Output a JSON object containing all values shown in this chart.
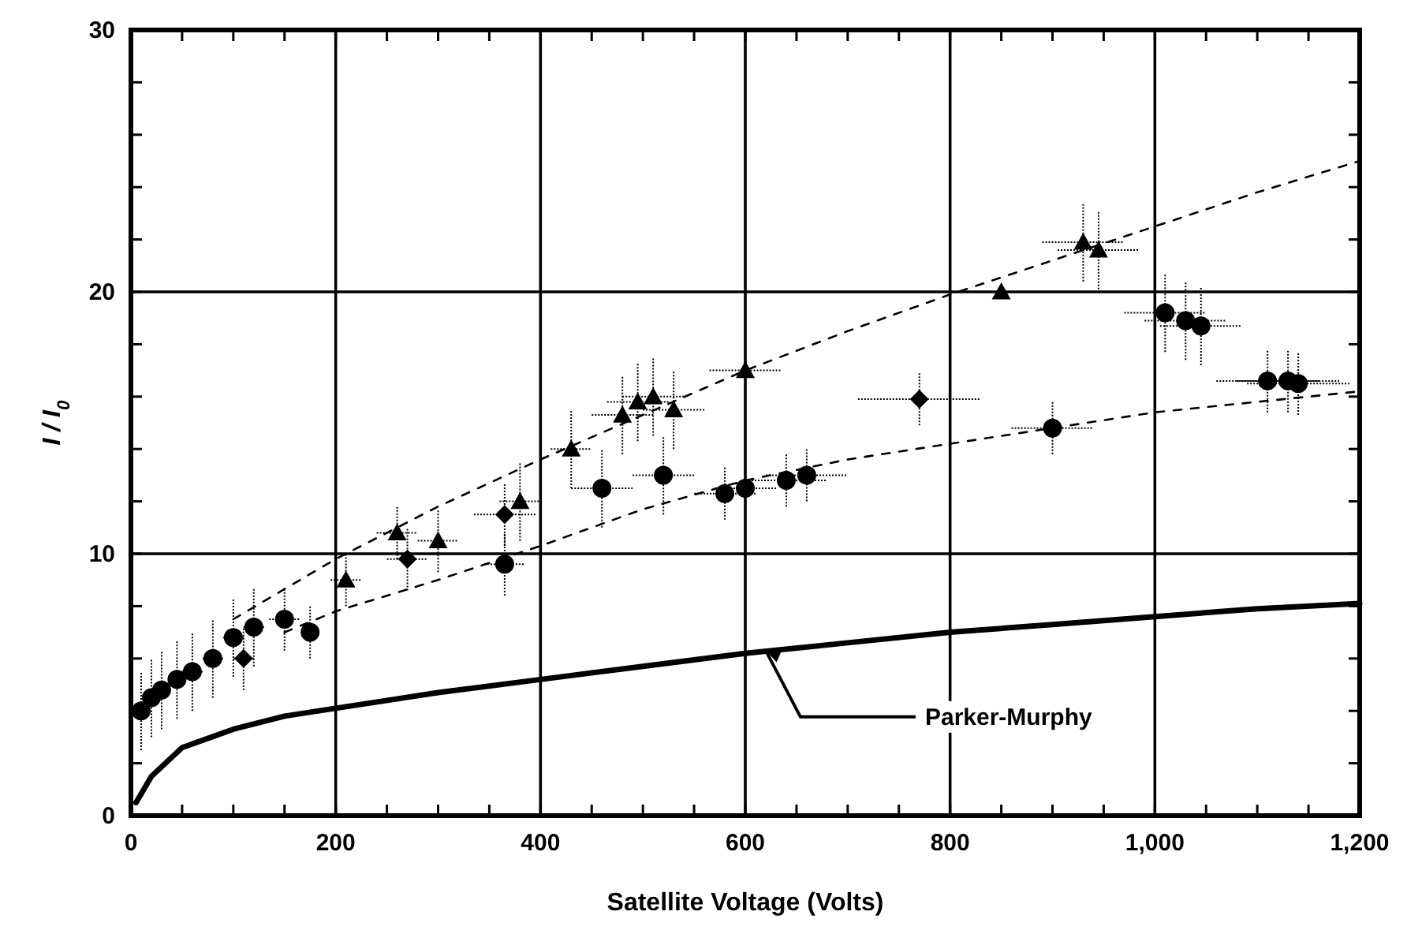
{
  "chart_data": {
    "type": "scatter",
    "xlabel": "Satellite Voltage (Volts)",
    "ylabel": "I / I$_{0}$",
    "xlim": [
      0,
      1200
    ],
    "ylim": [
      0,
      30
    ],
    "xticks": [
      0,
      {
        "value": 50,
        "label": null
      },
      {
        "value": 100,
        "label": null
      },
      {
        "value": 150,
        "label": null
      },
      200,
      {
        "value": 250,
        "label": null
      },
      {
        "value": 300,
        "label": null
      },
      {
        "value": 350,
        "label": null
      },
      400,
      {
        "value": 450,
        "label": null
      },
      {
        "value": 500,
        "label": null
      },
      {
        "value": 550,
        "label": null
      },
      600,
      {
        "value": 650,
        "label": null
      },
      {
        "value": 700,
        "label": null
      },
      {
        "value": 750,
        "label": null
      },
      800,
      {
        "value": 850,
        "label": null
      },
      {
        "value": 900,
        "label": null
      },
      {
        "value": 950,
        "label": null
      },
      {
        "value": 1000,
        "label": "1,000"
      },
      {
        "value": 1050,
        "label": null
      },
      {
        "value": 1100,
        "label": null
      },
      {
        "value": 1150,
        "label": null
      },
      {
        "value": 1200,
        "label": "1,200"
      }
    ],
    "yticks": [
      0,
      {
        "value": 2,
        "label": null
      },
      {
        "value": 4,
        "label": null
      },
      {
        "value": 6,
        "label": null
      },
      {
        "value": 8,
        "label": null
      },
      10,
      {
        "value": 12,
        "label": null
      },
      {
        "value": 14,
        "label": null
      },
      {
        "value": 16,
        "label": null
      },
      {
        "value": 18,
        "label": null
      },
      20,
      {
        "value": 22,
        "label": null
      },
      {
        "value": 24,
        "label": null
      },
      {
        "value": 26,
        "label": null
      },
      {
        "value": 28,
        "label": null
      },
      30
    ],
    "grid": true,
    "series": [
      {
        "marker": "triangle",
        "color": "#000000",
        "x": [
          210,
          260,
          300,
          380,
          430,
          480,
          495,
          510,
          530,
          600,
          850,
          930,
          945
        ],
        "values": [
          9,
          10.8,
          10.5,
          12,
          14,
          15.3,
          15.8,
          16,
          15.5,
          17,
          20,
          21.9,
          21.6
        ],
        "errors": [
          1,
          1,
          1.2,
          1.5,
          1.5,
          1.5,
          1.5,
          1.5,
          1.5,
          1,
          null,
          1.5,
          1.5
        ],
        "xerrors": [
          15,
          20,
          20,
          20,
          20,
          30,
          30,
          30,
          30,
          35,
          null,
          40,
          40
        ]
      },
      {
        "marker": "circle",
        "color": "#000000",
        "x": [
          10,
          20,
          30,
          45,
          60,
          80,
          100,
          120,
          150,
          175,
          365,
          460,
          520,
          580,
          600,
          640,
          660,
          900,
          1010,
          1030,
          1045,
          1110,
          1130,
          1140
        ],
        "values": [
          4,
          4.5,
          4.8,
          5.2,
          5.5,
          6,
          6.8,
          7.2,
          7.5,
          7,
          9.6,
          12.5,
          13,
          12.3,
          12.5,
          12.8,
          13,
          14.8,
          19.2,
          18.9,
          18.7,
          16.6,
          16.6,
          16.5
        ],
        "errors": [
          1.5,
          1.5,
          1.5,
          1.5,
          1.5,
          1.5,
          1.5,
          1.5,
          1.2,
          1,
          1.2,
          1.5,
          1.5,
          1,
          1,
          1,
          1,
          1,
          1.5,
          1.5,
          1.5,
          1.2,
          1.2,
          1.2
        ],
        "xerrors": [
          null,
          null,
          null,
          null,
          10,
          10,
          10,
          10,
          15,
          null,
          20,
          30,
          30,
          30,
          30,
          40,
          40,
          40,
          40,
          40,
          40,
          50,
          50,
          50
        ]
      },
      {
        "marker": "diamond",
        "color": "#000000",
        "x": [
          110,
          270,
          365,
          770
        ],
        "values": [
          6,
          9.8,
          11.5,
          15.9
        ],
        "errors": [
          1.2,
          1.2,
          1.2,
          1
        ],
        "xerrors": [
          10,
          20,
          30,
          60
        ]
      },
      {
        "type": "line",
        "line_style": "dashed",
        "color": "#000000",
        "x": [
          100,
          200,
          300,
          400,
          500,
          600,
          700,
          800,
          900,
          1000,
          1100,
          1200
        ],
        "values": [
          7.5,
          9.8,
          11.8,
          13.6,
          15.3,
          17,
          18.5,
          19.9,
          21.2,
          22.5,
          23.8,
          25
        ]
      },
      {
        "type": "line",
        "line_style": "dashed",
        "color": "#000000",
        "x": [
          150,
          200,
          300,
          400,
          500,
          600,
          700,
          800,
          900,
          1000,
          1100,
          1200
        ],
        "values": [
          7,
          7.8,
          9,
          10.3,
          11.7,
          12.8,
          13.6,
          14.2,
          14.8,
          15.4,
          15.8,
          16.2
        ]
      },
      {
        "type": "line",
        "line_style": "solid",
        "color": "#000000",
        "x": [
          5,
          20,
          50,
          100,
          150,
          200,
          300,
          400,
          500,
          600,
          700,
          800,
          900,
          1000,
          1100,
          1200
        ],
        "values": [
          0.5,
          1.5,
          2.6,
          3.3,
          3.8,
          4.1,
          4.7,
          5.2,
          5.7,
          6.2,
          6.6,
          7,
          7.3,
          7.6,
          7.9,
          8.1
        ]
      }
    ],
    "annotations": [
      {
        "text": "Parker-Murphy",
        "x": 620,
        "y": 6.3
      }
    ]
  }
}
